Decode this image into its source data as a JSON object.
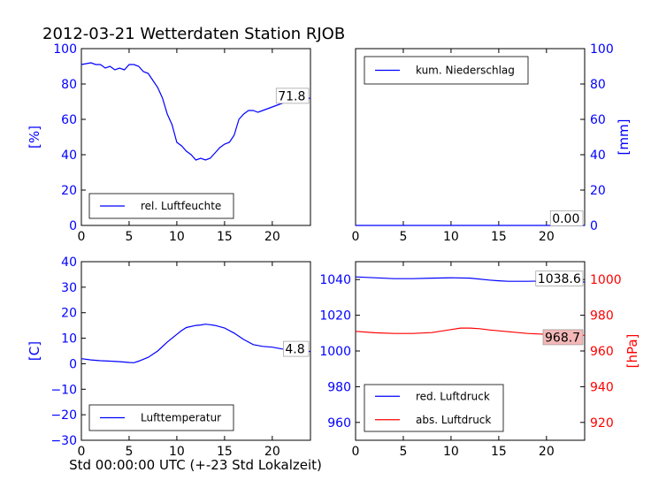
{
  "title": "2012-03-21 Wetterdaten Station RJOB",
  "xlabel": "Std 00:00:00 UTC (+-23 Std Lokalzeit)",
  "colors": {
    "blue": "#0000ff",
    "red": "#ff0000",
    "pressure_label_bg": "#f4b8b8",
    "axis": "#000000"
  },
  "chart_data": [
    {
      "id": "humidity",
      "type": "line",
      "ylabel": "[%]",
      "xlim": [
        0,
        24
      ],
      "ylim": [
        0,
        100
      ],
      "x_ticks": [
        "0",
        "5",
        "10",
        "15",
        "20"
      ],
      "y_ticks": [
        "0",
        "20",
        "40",
        "60",
        "80",
        "100"
      ],
      "tick_color": "#0000ff",
      "legend": [
        "rel. Luftfeuchte"
      ],
      "last_value_label": "71.8",
      "series": [
        {
          "name": "rel. Luftfeuchte",
          "color": "#0000ff",
          "x": [
            0,
            0.5,
            1,
            1.5,
            2,
            2.5,
            3,
            3.5,
            4,
            4.5,
            5,
            5.5,
            6,
            6.5,
            7,
            7.5,
            8,
            8.5,
            9,
            9.5,
            10,
            10.5,
            11,
            11.5,
            12,
            12.5,
            13,
            13.5,
            14,
            14.5,
            15,
            15.5,
            16,
            16.5,
            17,
            17.5,
            18,
            18.5,
            19,
            19.5,
            20,
            20.5,
            21,
            21.5,
            22,
            22.5,
            23,
            23.5,
            24
          ],
          "y": [
            91,
            91.5,
            92,
            91,
            91,
            89,
            90,
            88,
            89,
            88,
            91,
            91,
            90,
            87,
            86,
            82,
            78,
            72,
            63,
            57,
            47,
            45,
            42,
            40,
            37,
            38,
            37,
            38,
            41,
            44,
            46,
            47,
            51,
            60,
            63,
            65,
            65,
            64,
            65,
            66,
            67,
            68,
            69,
            70,
            71,
            72,
            72,
            72.5,
            71.8
          ]
        }
      ]
    },
    {
      "id": "precipitation",
      "type": "line",
      "ylabel": "[mm]",
      "xlim": [
        0,
        24
      ],
      "ylim": [
        0,
        100
      ],
      "x_ticks": [
        "0",
        "5",
        "10",
        "15",
        "20"
      ],
      "y_ticks": [
        "0",
        "20",
        "40",
        "60",
        "80",
        "100"
      ],
      "tick_color": "#0000ff",
      "legend": [
        "kum. Niederschlag"
      ],
      "last_value_label": "0.00",
      "series": [
        {
          "name": "kum. Niederschlag",
          "color": "#0000ff",
          "x": [
            0,
            24
          ],
          "y": [
            0,
            0
          ]
        }
      ]
    },
    {
      "id": "temperature",
      "type": "line",
      "ylabel": "[C]",
      "xlim": [
        0,
        24
      ],
      "ylim": [
        -30,
        40
      ],
      "x_ticks": [
        "0",
        "5",
        "10",
        "15",
        "20"
      ],
      "y_ticks": [
        "−30",
        "−20",
        "−10",
        "0",
        "10",
        "20",
        "30",
        "40"
      ],
      "tick_color": "#0000ff",
      "legend": [
        "Lufttemperatur"
      ],
      "last_value_label": "4.8",
      "series": [
        {
          "name": "Lufttemperatur",
          "color": "#0000ff",
          "x": [
            0,
            1,
            2,
            3,
            4,
            5,
            5.5,
            6,
            7,
            8,
            9,
            10,
            10.5,
            11,
            12,
            12.5,
            13,
            13.5,
            14,
            15,
            16,
            17,
            18,
            19,
            20,
            21,
            22,
            23,
            24
          ],
          "y": [
            2,
            1.5,
            1.2,
            1,
            0.8,
            0.5,
            0.4,
            1,
            2.5,
            5,
            8.5,
            11.5,
            13,
            14.2,
            15,
            15.2,
            15.5,
            15.3,
            15,
            14,
            12,
            9.5,
            7.5,
            6.8,
            6.5,
            5.8,
            5.5,
            5.1,
            4.8
          ]
        }
      ]
    },
    {
      "id": "pressure",
      "type": "line",
      "ylabel": "[hPa]",
      "xlim": [
        0,
        24
      ],
      "ylim_left": [
        950,
        1050
      ],
      "ylim_right": [
        910,
        1010
      ],
      "x_ticks": [
        "0",
        "5",
        "10",
        "15",
        "20"
      ],
      "left_ticks": [
        "960",
        "980",
        "1000",
        "1020",
        "1040"
      ],
      "right_ticks": [
        "920",
        "940",
        "960",
        "980",
        "1000"
      ],
      "left_tick_color": "#0000ff",
      "right_tick_color": "#ff0000",
      "legend": [
        "red. Luftdruck",
        "abs. Luftdruck"
      ],
      "last_value_labels": [
        "1038.6",
        "968.7"
      ],
      "series": [
        {
          "name": "red. Luftdruck",
          "axis": "left",
          "color": "#0000ff",
          "x": [
            0,
            2,
            4,
            6,
            8,
            10,
            12,
            14,
            15,
            16,
            18,
            20,
            22,
            24
          ],
          "y": [
            1041.5,
            1041,
            1040.5,
            1040.5,
            1040.8,
            1041,
            1040.8,
            1039.7,
            1039.3,
            1039,
            1039,
            1039.2,
            1039,
            1038.6
          ]
        },
        {
          "name": "abs. Luftdruck",
          "axis": "right",
          "color": "#ff0000",
          "x": [
            0,
            2,
            4,
            6,
            8,
            10,
            11,
            12,
            13,
            14,
            16,
            18,
            20,
            22,
            24
          ],
          "y": [
            971,
            970.2,
            969.8,
            969.8,
            970.3,
            972,
            972.8,
            972.8,
            972.5,
            971.8,
            970.8,
            969.8,
            969.3,
            969,
            968.7
          ]
        }
      ]
    }
  ]
}
